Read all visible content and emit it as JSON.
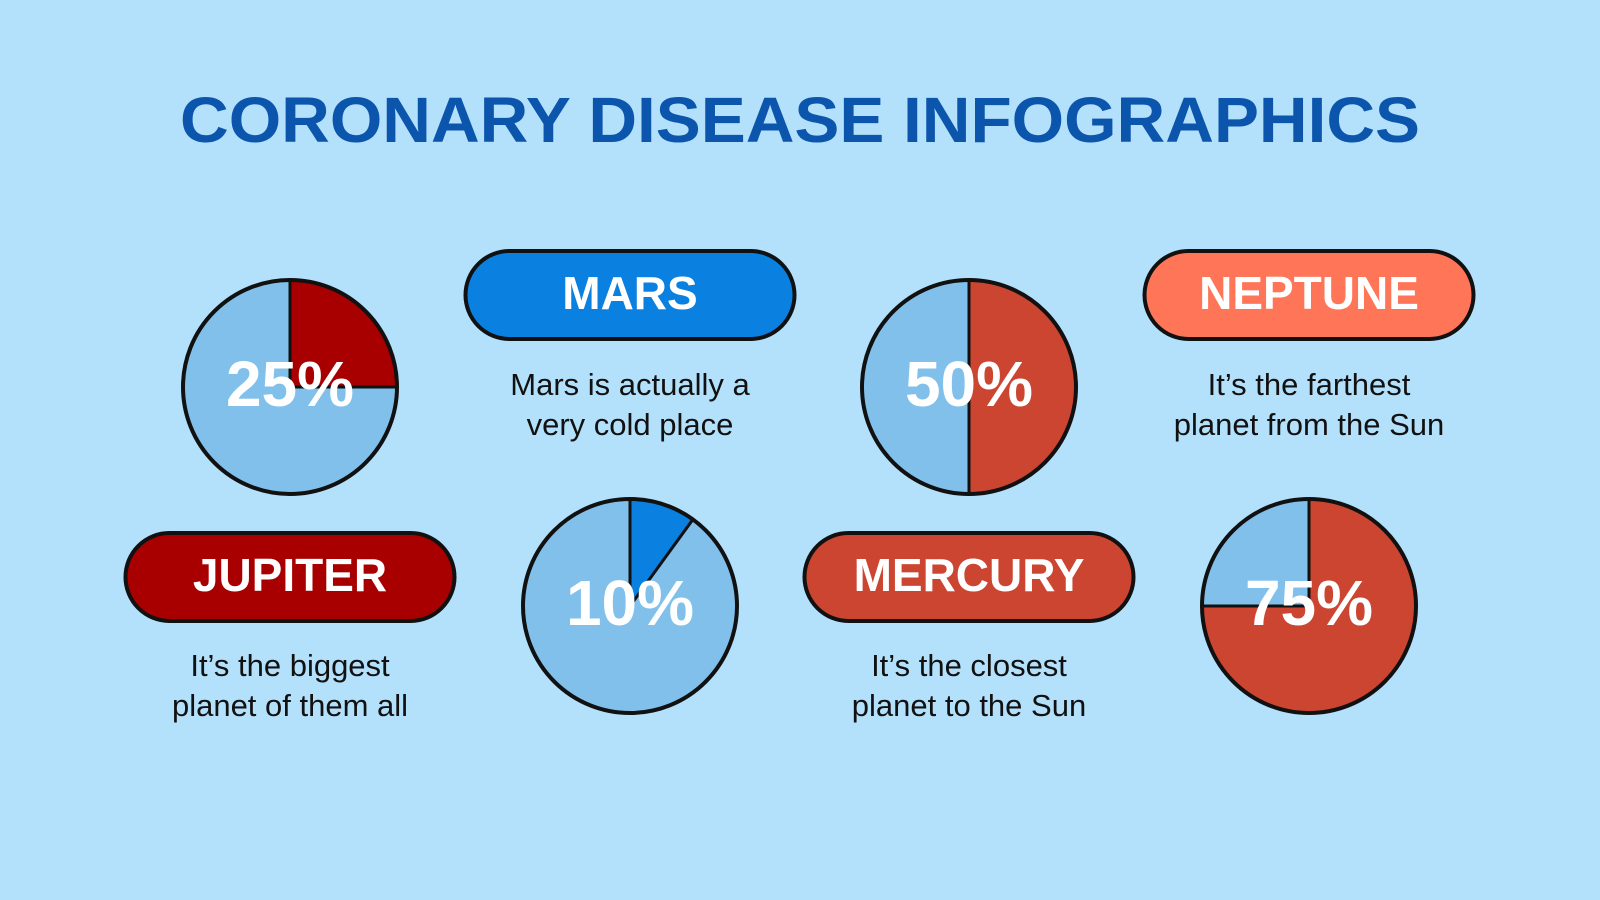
{
  "title": "CORONARY DISEASE INFOGRAPHICS",
  "cards": [
    {
      "label": "MARS",
      "lines": [
        "Mars is actually a",
        "very cold place"
      ]
    },
    {
      "label": "NEPTUNE",
      "lines": [
        "It’s the farthest",
        "planet from the Sun"
      ]
    },
    {
      "label": "JUPITER",
      "lines": [
        "It’s the biggest",
        "planet of them all"
      ]
    },
    {
      "label": "MERCURY",
      "lines": [
        "It’s the closest",
        "planet to the Sun"
      ]
    }
  ],
  "chart_data": [
    {
      "type": "pie",
      "values": [
        25
      ],
      "value_labels": [
        "25%"
      ],
      "color": "#a80000",
      "rest_color": "#80c0ea"
    },
    {
      "type": "pie",
      "values": [
        50
      ],
      "value_labels": [
        "50%"
      ],
      "color": "#cc4530",
      "rest_color": "#80c0ea"
    },
    {
      "type": "pie",
      "values": [
        10
      ],
      "value_labels": [
        "10%"
      ],
      "color": "#0a80e0",
      "rest_color": "#80c0ea"
    },
    {
      "type": "pie",
      "values": [
        75
      ],
      "value_labels": [
        "75%"
      ],
      "color": "#cc4530",
      "rest_color": "#80c0ea"
    }
  ]
}
